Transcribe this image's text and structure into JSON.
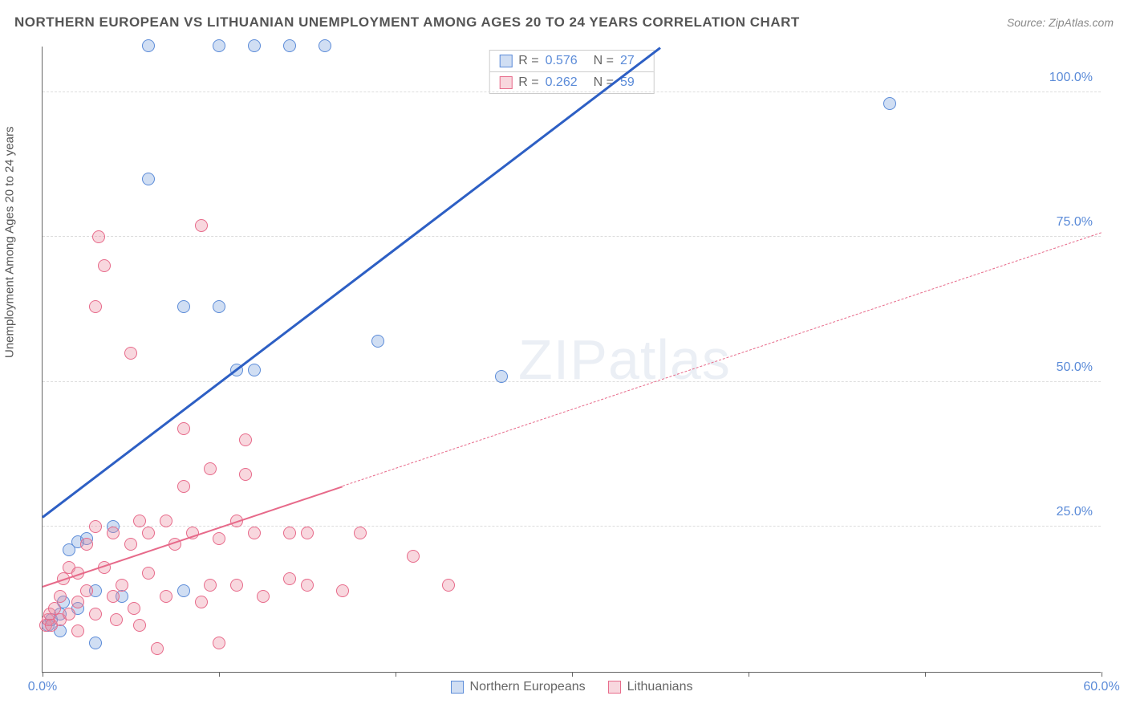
{
  "title": "NORTHERN EUROPEAN VS LITHUANIAN UNEMPLOYMENT AMONG AGES 20 TO 24 YEARS CORRELATION CHART",
  "source": "Source: ZipAtlas.com",
  "y_axis_title": "Unemployment Among Ages 20 to 24 years",
  "watermark": {
    "bold": "ZIP",
    "thin": "atlas"
  },
  "chart": {
    "type": "scatter",
    "background_color": "#ffffff",
    "grid_color": "#dddddd",
    "axis_color": "#666666",
    "xlim": [
      0,
      60
    ],
    "ylim": [
      0,
      108
    ],
    "x_ticks": [
      0,
      10,
      20,
      30,
      40,
      50,
      60
    ],
    "x_tick_labels": {
      "0": "0.0%",
      "60": "60.0%"
    },
    "y_gridlines": [
      25,
      50,
      75,
      100
    ],
    "y_tick_labels": {
      "25": "25.0%",
      "50": "50.0%",
      "75": "75.0%",
      "100": "100.0%"
    },
    "tick_label_color": "#5b8bd8",
    "tick_label_fontsize": 16,
    "marker_radius": 8,
    "marker_stroke_width": 1.5,
    "series": [
      {
        "name": "Northern Europeans",
        "fill": "rgba(120,160,220,0.35)",
        "stroke": "#5b8bd8",
        "r_value": "0.576",
        "n_value": "27",
        "trend": {
          "x1": 0,
          "y1": 27,
          "x2": 35,
          "y2": 108,
          "color": "#2d5fc4",
          "width": 3,
          "dashed_extension": false
        },
        "points": [
          [
            0.3,
            8
          ],
          [
            0.5,
            9
          ],
          [
            1,
            10
          ],
          [
            1,
            7
          ],
          [
            1.2,
            12
          ],
          [
            1.5,
            21
          ],
          [
            2,
            22.5
          ],
          [
            2,
            11
          ],
          [
            2.5,
            23
          ],
          [
            3,
            14
          ],
          [
            3,
            5
          ],
          [
            4,
            25
          ],
          [
            4.5,
            13
          ],
          [
            6,
            108
          ],
          [
            6,
            85
          ],
          [
            8,
            63
          ],
          [
            8,
            14
          ],
          [
            10,
            108
          ],
          [
            10,
            63
          ],
          [
            11,
            52
          ],
          [
            12,
            108
          ],
          [
            12,
            52
          ],
          [
            14,
            108
          ],
          [
            16,
            108
          ],
          [
            19,
            57
          ],
          [
            26,
            51
          ],
          [
            48,
            98
          ]
        ]
      },
      {
        "name": "Lithuanians",
        "fill": "rgba(235,140,160,0.35)",
        "stroke": "#e76a8a",
        "r_value": "0.262",
        "n_value": "59",
        "trend": {
          "x1": 0,
          "y1": 15,
          "x2": 60,
          "y2": 76,
          "color": "#e76a8a",
          "width": 2.5,
          "dashed_extension": true,
          "solid_until_x": 17
        },
        "points": [
          [
            0.2,
            8
          ],
          [
            0.3,
            9
          ],
          [
            0.4,
            10
          ],
          [
            0.5,
            8
          ],
          [
            0.7,
            11
          ],
          [
            1,
            9
          ],
          [
            1,
            13
          ],
          [
            1.2,
            16
          ],
          [
            1.5,
            10
          ],
          [
            1.5,
            18
          ],
          [
            2,
            12
          ],
          [
            2,
            7
          ],
          [
            2,
            17
          ],
          [
            2.5,
            22
          ],
          [
            2.5,
            14
          ],
          [
            3,
            10
          ],
          [
            3,
            25
          ],
          [
            3,
            63
          ],
          [
            3.2,
            75
          ],
          [
            3.5,
            18
          ],
          [
            3.5,
            70
          ],
          [
            4,
            13
          ],
          [
            4,
            24
          ],
          [
            4.2,
            9
          ],
          [
            4.5,
            15
          ],
          [
            5,
            22
          ],
          [
            5,
            55
          ],
          [
            5.2,
            11
          ],
          [
            5.5,
            8
          ],
          [
            5.5,
            26
          ],
          [
            6,
            24
          ],
          [
            6,
            17
          ],
          [
            6.5,
            4
          ],
          [
            7,
            13
          ],
          [
            7,
            26
          ],
          [
            7.5,
            22
          ],
          [
            8,
            42
          ],
          [
            8,
            32
          ],
          [
            8.5,
            24
          ],
          [
            9,
            77
          ],
          [
            9,
            12
          ],
          [
            9.5,
            15
          ],
          [
            9.5,
            35
          ],
          [
            10,
            23
          ],
          [
            10,
            5
          ],
          [
            11,
            26
          ],
          [
            11,
            15
          ],
          [
            11.5,
            34
          ],
          [
            11.5,
            40
          ],
          [
            12,
            24
          ],
          [
            12.5,
            13
          ],
          [
            14,
            16
          ],
          [
            14,
            24
          ],
          [
            15,
            15
          ],
          [
            15,
            24
          ],
          [
            17,
            14
          ],
          [
            18,
            24
          ],
          [
            21,
            20
          ],
          [
            23,
            15
          ]
        ]
      }
    ]
  },
  "legend_labels": {
    "r": "R =",
    "n": "N ="
  }
}
